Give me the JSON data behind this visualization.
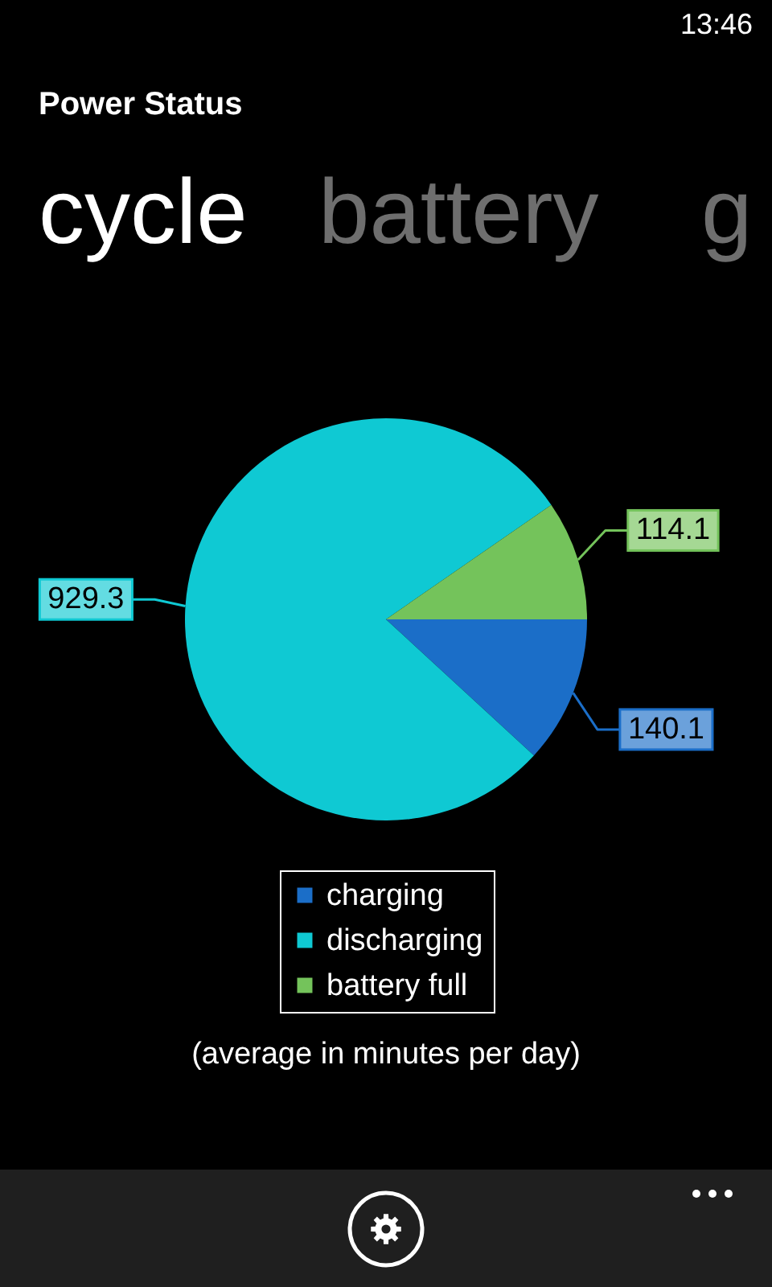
{
  "chart_data": {
    "type": "pie",
    "title": "Power Status",
    "annotations": [
      "13:46",
      "cycle",
      "battery",
      "g",
      "(average in minutes per day)"
    ],
    "categories": [
      "charging",
      "discharging",
      "battery full"
    ],
    "values": [
      140.1,
      929.3,
      114.1
    ],
    "colors": [
      "#1b6ec8",
      "#0fc9d3",
      "#74c35b"
    ],
    "data_labels": true,
    "legend": "bottom"
  }
}
